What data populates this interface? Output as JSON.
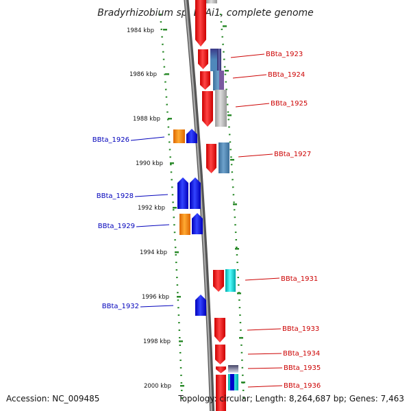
{
  "title": "Bradyrhizobium sp. BTAi1, complete genome",
  "footer": {
    "accession": "Accession: NC_009485",
    "summary": "Topology: circular; Length: 8,264,687 bp; Genes: 7,463"
  },
  "scale_labels": [
    {
      "kbp": 1984,
      "text": "1984 kbp"
    },
    {
      "kbp": 1986,
      "text": "1986 kbp"
    },
    {
      "kbp": 1988,
      "text": "1988 kbp"
    },
    {
      "kbp": 1990,
      "text": "1990 kbp"
    },
    {
      "kbp": 1992,
      "text": "1992 kbp"
    },
    {
      "kbp": 1994,
      "text": "1994 kbp"
    },
    {
      "kbp": 1996,
      "text": "1996 kbp"
    },
    {
      "kbp": 1998,
      "text": "1998 kbp"
    },
    {
      "kbp": 2000,
      "text": "2000 kbp"
    }
  ],
  "gene_labels": [
    {
      "id": "BBta_1923",
      "strand": "forward"
    },
    {
      "id": "BBta_1924",
      "strand": "forward"
    },
    {
      "id": "BBta_1925",
      "strand": "forward"
    },
    {
      "id": "BBta_1926",
      "strand": "reverse"
    },
    {
      "id": "BBta_1927",
      "strand": "forward"
    },
    {
      "id": "BBta_1928",
      "strand": "reverse"
    },
    {
      "id": "BBta_1929",
      "strand": "reverse"
    },
    {
      "id": "BBta_1931",
      "strand": "forward"
    },
    {
      "id": "BBta_1932",
      "strand": "reverse"
    },
    {
      "id": "BBta_1933",
      "strand": "forward"
    },
    {
      "id": "BBta_1934",
      "strand": "forward"
    },
    {
      "id": "BBta_1935",
      "strand": "forward"
    },
    {
      "id": "BBta_1936",
      "strand": "forward"
    }
  ],
  "colors": {
    "forward_gene": "#ee1111",
    "reverse_gene": "#1111ee",
    "forward_label": "#cc0000",
    "reverse_label": "#0000bb",
    "orange_track": "#ff8800",
    "steel_blue_track": "#4f88bb",
    "cyan_track": "#11dddd",
    "grey_track": "#bbbbbb",
    "navy_track": "#3a3a8a",
    "scale_dots": "#2a8a2a",
    "backbone": "#888888"
  }
}
